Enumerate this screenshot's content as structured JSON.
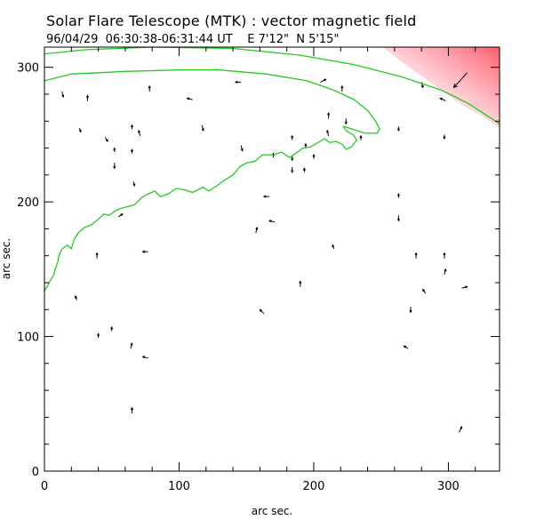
{
  "header": {
    "title": "Solar Flare Telescope (MTK) : vector magnetic field",
    "subtitle": "96/04/29  06:30:38-06:31:44 UT    E 7'12\"  N 5'15\""
  },
  "colors": {
    "contour": "#22cc22",
    "vector": "#000000",
    "flare_patch": "#ff6070",
    "axis": "#000000"
  },
  "chart_data": {
    "type": "vector-field",
    "title": "Solar Flare Telescope (MTK) : vector magnetic field",
    "xlabel": "arc sec.",
    "ylabel": "arc sec.",
    "xlim": [
      0,
      338
    ],
    "ylim": [
      0,
      315
    ],
    "x_ticks": [
      0,
      100,
      200,
      300
    ],
    "y_ticks": [
      0,
      100,
      200,
      300
    ],
    "x_tick_labels": [
      "0",
      "100",
      "200",
      "300"
    ],
    "y_tick_labels": [
      "0",
      "100",
      "200",
      "300"
    ],
    "contours": [
      {
        "name": "outer-contour",
        "points": [
          [
            0,
            310
          ],
          [
            30,
            313
          ],
          [
            80,
            315
          ],
          [
            140,
            314
          ],
          [
            190,
            309
          ],
          [
            230,
            302
          ],
          [
            265,
            293
          ],
          [
            295,
            283
          ],
          [
            315,
            273
          ],
          [
            332,
            262
          ],
          [
            338,
            258
          ]
        ]
      },
      {
        "name": "inner-contour",
        "points": [
          [
            0,
            290
          ],
          [
            20,
            295
          ],
          [
            60,
            297
          ],
          [
            100,
            298
          ],
          [
            130,
            298
          ],
          [
            165,
            295
          ],
          [
            195,
            290
          ],
          [
            215,
            283
          ],
          [
            230,
            276
          ],
          [
            240,
            268
          ],
          [
            246,
            260
          ],
          [
            249,
            254
          ],
          [
            247,
            251
          ],
          [
            238,
            251
          ],
          [
            232,
            253
          ],
          [
            226,
            255
          ],
          [
            222,
            256
          ],
          [
            224,
            253
          ],
          [
            229,
            250
          ],
          [
            232,
            246
          ],
          [
            228,
            241
          ],
          [
            224,
            239
          ],
          [
            221,
            243
          ],
          [
            216,
            245
          ],
          [
            212,
            244
          ],
          [
            208,
            247
          ],
          [
            198,
            241
          ],
          [
            192,
            240
          ],
          [
            188,
            237
          ],
          [
            182,
            233
          ],
          [
            176,
            237
          ],
          [
            170,
            235
          ],
          [
            162,
            235
          ],
          [
            156,
            230
          ],
          [
            150,
            229
          ],
          [
            145,
            226
          ],
          [
            140,
            220
          ],
          [
            135,
            217
          ],
          [
            128,
            212
          ],
          [
            122,
            208
          ],
          [
            118,
            211
          ],
          [
            110,
            207
          ],
          [
            104,
            209
          ],
          [
            98,
            210
          ],
          [
            92,
            206
          ],
          [
            86,
            204
          ],
          [
            82,
            208
          ],
          [
            77,
            206
          ],
          [
            72,
            203
          ],
          [
            67,
            198
          ],
          [
            60,
            196
          ],
          [
            56,
            195
          ],
          [
            52,
            193
          ],
          [
            48,
            190
          ],
          [
            44,
            191
          ],
          [
            40,
            187
          ],
          [
            35,
            183
          ],
          [
            30,
            181
          ],
          [
            25,
            177
          ],
          [
            22,
            172
          ],
          [
            20,
            165
          ],
          [
            17,
            168
          ],
          [
            13,
            165
          ],
          [
            11,
            161
          ],
          [
            10,
            156
          ],
          [
            8,
            150
          ],
          [
            7,
            146
          ],
          [
            4,
            141
          ],
          [
            2,
            137
          ],
          [
            0,
            134
          ]
        ]
      }
    ],
    "flare_region": {
      "label": "",
      "points": [
        [
          250,
          316
        ],
        [
          338,
          316
        ],
        [
          338,
          255
        ],
        [
          325,
          264
        ],
        [
          310,
          272
        ],
        [
          296,
          282
        ],
        [
          282,
          292
        ],
        [
          268,
          302
        ]
      ]
    },
    "vectors": [
      {
        "x": 13,
        "y": 282,
        "dx": 1,
        "dy": -4
      },
      {
        "x": 32,
        "y": 275,
        "dx": 0,
        "dy": 4
      },
      {
        "x": 26,
        "y": 255,
        "dx": 1,
        "dy": -3
      },
      {
        "x": 45,
        "y": 248,
        "dx": 2,
        "dy": -3
      },
      {
        "x": 52,
        "y": 237,
        "dx": 0,
        "dy": 3
      },
      {
        "x": 52,
        "y": 229,
        "dx": 0,
        "dy": -4
      },
      {
        "x": 65,
        "y": 254,
        "dx": 0,
        "dy": 3
      },
      {
        "x": 71,
        "y": 249,
        "dx": -1,
        "dy": 4
      },
      {
        "x": 65,
        "y": 236,
        "dx": 0,
        "dy": 3
      },
      {
        "x": 66,
        "y": 215,
        "dx": 1,
        "dy": -3
      },
      {
        "x": 78,
        "y": 282,
        "dx": 0,
        "dy": 4
      },
      {
        "x": 110,
        "y": 276,
        "dx": -4,
        "dy": 1
      },
      {
        "x": 117,
        "y": 257,
        "dx": 1,
        "dy": -4
      },
      {
        "x": 146,
        "y": 289,
        "dx": -4,
        "dy": 0
      },
      {
        "x": 146,
        "y": 242,
        "dx": 1,
        "dy": -4
      },
      {
        "x": 184,
        "y": 246,
        "dx": 0,
        "dy": 3
      },
      {
        "x": 184,
        "y": 234,
        "dx": 0,
        "dy": -3
      },
      {
        "x": 184,
        "y": 226,
        "dx": 0,
        "dy": -4
      },
      {
        "x": 194,
        "y": 240,
        "dx": 0,
        "dy": 3
      },
      {
        "x": 193,
        "y": 222,
        "dx": 0,
        "dy": 3
      },
      {
        "x": 170,
        "y": 233,
        "dx": 0,
        "dy": 3
      },
      {
        "x": 167,
        "y": 204,
        "dx": -4,
        "dy": 0
      },
      {
        "x": 171,
        "y": 185,
        "dx": -4,
        "dy": 1
      },
      {
        "x": 157,
        "y": 177,
        "dx": 1,
        "dy": 4
      },
      {
        "x": 205,
        "y": 289,
        "dx": 4,
        "dy": 2
      },
      {
        "x": 211,
        "y": 262,
        "dx": 0,
        "dy": 4
      },
      {
        "x": 221,
        "y": 282,
        "dx": 0,
        "dy": 4
      },
      {
        "x": 224,
        "y": 262,
        "dx": 0,
        "dy": -4
      },
      {
        "x": 211,
        "y": 249,
        "dx": -1,
        "dy": 4
      },
      {
        "x": 235,
        "y": 246,
        "dx": 0,
        "dy": 3
      },
      {
        "x": 215,
        "y": 165,
        "dx": -1,
        "dy": 3
      },
      {
        "x": 200,
        "y": 232,
        "dx": 0,
        "dy": 3
      },
      {
        "x": 263,
        "y": 203,
        "dx": 0,
        "dy": 3
      },
      {
        "x": 263,
        "y": 190,
        "dx": 0,
        "dy": -4
      },
      {
        "x": 263,
        "y": 256,
        "dx": 0,
        "dy": -3
      },
      {
        "x": 280,
        "y": 289,
        "dx": 1,
        "dy": -4
      },
      {
        "x": 297,
        "y": 250,
        "dx": 0,
        "dy": -3
      },
      {
        "x": 298,
        "y": 275,
        "dx": -4,
        "dy": 2
      },
      {
        "x": 314,
        "y": 296,
        "dx": -10,
        "dy": -11
      },
      {
        "x": 276,
        "y": 158,
        "dx": 0,
        "dy": 4
      },
      {
        "x": 297,
        "y": 158,
        "dx": 0,
        "dy": 4
      },
      {
        "x": 297,
        "y": 146,
        "dx": 1,
        "dy": 4
      },
      {
        "x": 310,
        "y": 136,
        "dx": 4,
        "dy": 1
      },
      {
        "x": 283,
        "y": 132,
        "dx": -2,
        "dy": 3
      },
      {
        "x": 272,
        "y": 122,
        "dx": 0,
        "dy": -4
      },
      {
        "x": 39,
        "y": 158,
        "dx": 0,
        "dy": 4
      },
      {
        "x": 24,
        "y": 127,
        "dx": -1,
        "dy": 3
      },
      {
        "x": 55,
        "y": 189,
        "dx": 3,
        "dy": 2
      },
      {
        "x": 77,
        "y": 163,
        "dx": -4,
        "dy": 0
      },
      {
        "x": 50,
        "y": 104,
        "dx": 0,
        "dy": 3
      },
      {
        "x": 40,
        "y": 99,
        "dx": 0,
        "dy": 3
      },
      {
        "x": 64,
        "y": 91,
        "dx": 1,
        "dy": 4
      },
      {
        "x": 77,
        "y": 84,
        "dx": -4,
        "dy": 1
      },
      {
        "x": 65,
        "y": 43,
        "dx": 0,
        "dy": 4
      },
      {
        "x": 163,
        "y": 117,
        "dx": -3,
        "dy": 3
      },
      {
        "x": 190,
        "y": 137,
        "dx": 0,
        "dy": 4
      },
      {
        "x": 270,
        "y": 91,
        "dx": -3,
        "dy": 2
      },
      {
        "x": 308,
        "y": 29,
        "dx": 2,
        "dy": 4
      }
    ]
  }
}
